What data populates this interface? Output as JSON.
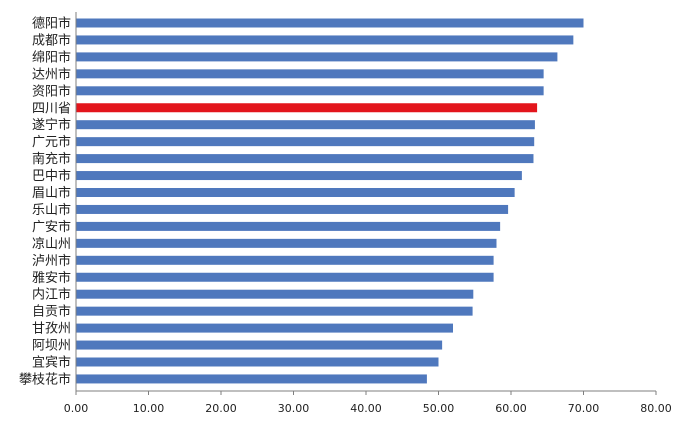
{
  "chart_data": {
    "type": "bar",
    "orientation": "horizontal",
    "categories": [
      "德阳市",
      "成都市",
      "绵阳市",
      "达州市",
      "资阳市",
      "四川省",
      "遂宁市",
      "广元市",
      "南充市",
      "巴中市",
      "眉山市",
      "乐山市",
      "广安市",
      "凉山州",
      "泸州市",
      "雅安市",
      "内江市",
      "自贡市",
      "甘孜州",
      "阿坝州",
      "宜宾市",
      "攀枝花市"
    ],
    "values": [
      70.0,
      68.6,
      66.4,
      64.5,
      64.5,
      63.6,
      63.3,
      63.2,
      63.1,
      61.5,
      60.5,
      59.6,
      58.5,
      58.0,
      57.6,
      57.6,
      54.8,
      54.7,
      52.0,
      50.5,
      50.0,
      48.4
    ],
    "highlight": "四川省",
    "xlim": [
      0,
      80
    ],
    "xticks": [
      "0.00",
      "10.00",
      "20.00",
      "30.00",
      "40.00",
      "50.00",
      "60.00",
      "70.00",
      "80.00"
    ],
    "grid": false,
    "colors": {
      "bar": "#4f78bd",
      "highlight": "#e3151c",
      "axis": "#7f7f7f"
    }
  }
}
